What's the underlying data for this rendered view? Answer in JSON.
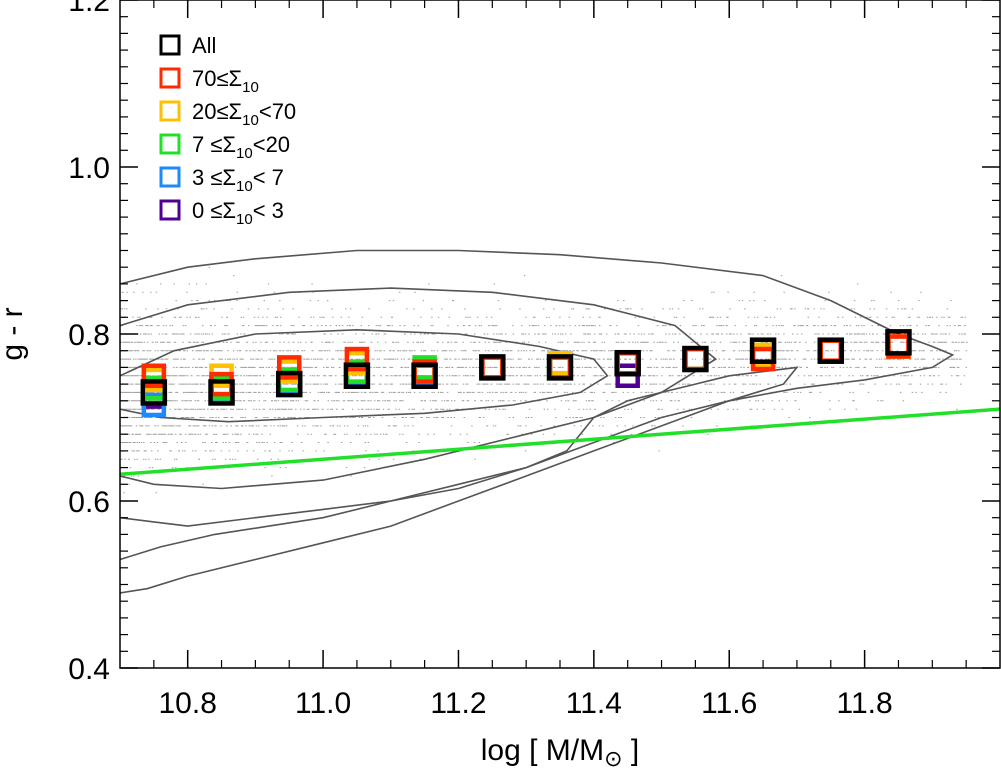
{
  "chart_data": {
    "type": "scatter",
    "xlabel": "log [ M/M",
    "xlabel_symbol": "⊙",
    "xlabel_close": " ]",
    "ylabel": "g - r",
    "xlim": [
      10.7,
      12.0
    ],
    "ylim": [
      0.4,
      1.2
    ],
    "x_ticks": [
      10.8,
      11.0,
      11.2,
      11.4,
      11.6,
      11.8
    ],
    "x_tick_labels": [
      "10.8",
      "11.0",
      "11.2",
      "11.4",
      "11.6",
      "11.8"
    ],
    "y_ticks": [
      0.4,
      0.6,
      0.8,
      1.0,
      1.2
    ],
    "y_tick_labels": [
      "0.4",
      "0.6",
      "0.8",
      "1.0",
      "1.2"
    ],
    "legend": [
      {
        "label": "All",
        "color": "#000000"
      },
      {
        "label": "70≤Σ",
        "sub": "10",
        "after": "",
        "color": "#ff2a00"
      },
      {
        "label": "20≤Σ",
        "sub": "10",
        "after": "<70",
        "color": "#ffc000"
      },
      {
        "label": "7 ≤Σ",
        "sub": "10",
        "after": "<20",
        "color": "#22e02a"
      },
      {
        "label": "3 ≤Σ",
        "sub": "10",
        "after": "< 7",
        "color": "#1e88ff"
      },
      {
        "label": "0 ≤Σ",
        "sub": "10",
        "after": "< 3",
        "color": "#500090"
      }
    ],
    "series": [
      {
        "name": "0 ≤Σ10< 3",
        "color": "#500090",
        "x": [
          10.75,
          10.85,
          10.95,
          11.05,
          11.15,
          11.25,
          11.35,
          11.45
        ],
        "y": [
          0.725,
          0.735,
          0.74,
          0.75,
          0.75,
          0.76,
          0.765,
          0.75
        ]
      },
      {
        "name": "3 ≤Σ10< 7",
        "color": "#1e88ff",
        "x": [
          10.75,
          10.85,
          10.95,
          11.05,
          11.15,
          11.25,
          11.35,
          11.45,
          11.55
        ],
        "y": [
          0.715,
          0.73,
          0.74,
          0.75,
          0.75,
          0.76,
          0.76,
          0.765,
          0.77
        ]
      },
      {
        "name": "7 ≤Σ10<20",
        "color": "#22e02a",
        "x": [
          10.75,
          10.85,
          10.95,
          11.05,
          11.15,
          11.25,
          11.35,
          11.45,
          11.55,
          11.65,
          11.75
        ],
        "y": [
          0.735,
          0.735,
          0.745,
          0.755,
          0.76,
          0.76,
          0.76,
          0.765,
          0.77,
          0.775,
          0.78
        ]
      },
      {
        "name": "20≤Σ10<70",
        "color": "#ffc000",
        "x": [
          10.75,
          10.85,
          10.95,
          11.05,
          11.15,
          11.25,
          11.35,
          11.45,
          11.55,
          11.65,
          11.75,
          11.85
        ],
        "y": [
          0.745,
          0.75,
          0.755,
          0.765,
          0.755,
          0.76,
          0.765,
          0.765,
          0.77,
          0.775,
          0.78,
          0.785
        ]
      },
      {
        "name": "70≤Σ10",
        "color": "#ff2a00",
        "x": [
          10.75,
          10.85,
          10.95,
          11.05,
          11.15,
          11.25,
          11.35,
          11.45,
          11.55,
          11.65,
          11.75,
          11.85
        ],
        "y": [
          0.75,
          0.74,
          0.76,
          0.77,
          0.755,
          0.76,
          0.76,
          0.765,
          0.77,
          0.77,
          0.78,
          0.785
        ]
      },
      {
        "name": "All",
        "color": "#000000",
        "x": [
          10.75,
          10.85,
          10.95,
          11.05,
          11.15,
          11.25,
          11.35,
          11.45,
          11.55,
          11.65,
          11.75,
          11.85
        ],
        "y": [
          0.73,
          0.73,
          0.74,
          0.75,
          0.75,
          0.76,
          0.76,
          0.765,
          0.77,
          0.78,
          0.78,
          0.79
        ]
      }
    ],
    "divider_line": {
      "color": "#22e02a",
      "x": [
        10.7,
        12.0
      ],
      "y": [
        0.632,
        0.71
      ]
    },
    "contours": [
      {
        "name": "inner",
        "x": [
          10.7,
          10.78,
          10.9,
          11.05,
          11.2,
          11.32,
          11.4,
          11.42,
          11.38,
          11.28,
          11.15,
          11.0,
          10.86,
          10.76,
          10.7
        ],
        "y": [
          0.75,
          0.78,
          0.8,
          0.805,
          0.8,
          0.785,
          0.77,
          0.75,
          0.73,
          0.715,
          0.705,
          0.7,
          0.695,
          0.7,
          0.71
        ]
      },
      {
        "name": "middle",
        "x": [
          10.7,
          10.8,
          10.95,
          11.1,
          11.25,
          11.4,
          11.52,
          11.58,
          11.5,
          11.4,
          11.3,
          11.15,
          11.0,
          10.85,
          10.75,
          10.7
        ],
        "y": [
          0.81,
          0.835,
          0.85,
          0.855,
          0.85,
          0.835,
          0.81,
          0.77,
          0.73,
          0.7,
          0.68,
          0.65,
          0.625,
          0.615,
          0.62,
          0.63
        ]
      },
      {
        "name": "outer",
        "x": [
          10.7,
          10.8,
          10.9,
          11.05,
          11.2,
          11.35,
          11.5,
          11.65,
          11.75,
          11.85,
          11.9,
          11.93,
          11.9,
          11.8,
          11.7,
          11.6,
          11.5,
          11.4,
          11.3,
          11.2,
          11.1,
          11.0,
          10.9,
          10.8,
          10.75,
          10.7
        ],
        "y": [
          0.86,
          0.88,
          0.89,
          0.9,
          0.9,
          0.895,
          0.885,
          0.87,
          0.84,
          0.8,
          0.785,
          0.775,
          0.76,
          0.745,
          0.735,
          0.72,
          0.7,
          0.67,
          0.64,
          0.615,
          0.6,
          0.59,
          0.58,
          0.57,
          0.575,
          0.58
        ]
      },
      {
        "name": "outermost",
        "x": [
          10.7,
          10.76,
          10.84,
          10.92,
          11.0,
          11.1,
          11.2,
          11.3,
          11.36,
          11.38,
          11.4,
          11.45,
          11.5,
          11.55,
          11.6,
          11.65,
          11.7,
          11.68,
          11.6,
          11.5,
          11.4,
          11.3,
          11.2,
          11.1,
          11.0,
          10.9,
          10.8,
          10.74,
          10.7
        ],
        "y": [
          0.53,
          0.545,
          0.56,
          0.57,
          0.58,
          0.6,
          0.62,
          0.64,
          0.66,
          0.68,
          0.7,
          0.72,
          0.73,
          0.74,
          0.75,
          0.755,
          0.76,
          0.74,
          0.72,
          0.69,
          0.66,
          0.63,
          0.6,
          0.57,
          0.55,
          0.53,
          0.51,
          0.495,
          0.49
        ]
      }
    ]
  }
}
